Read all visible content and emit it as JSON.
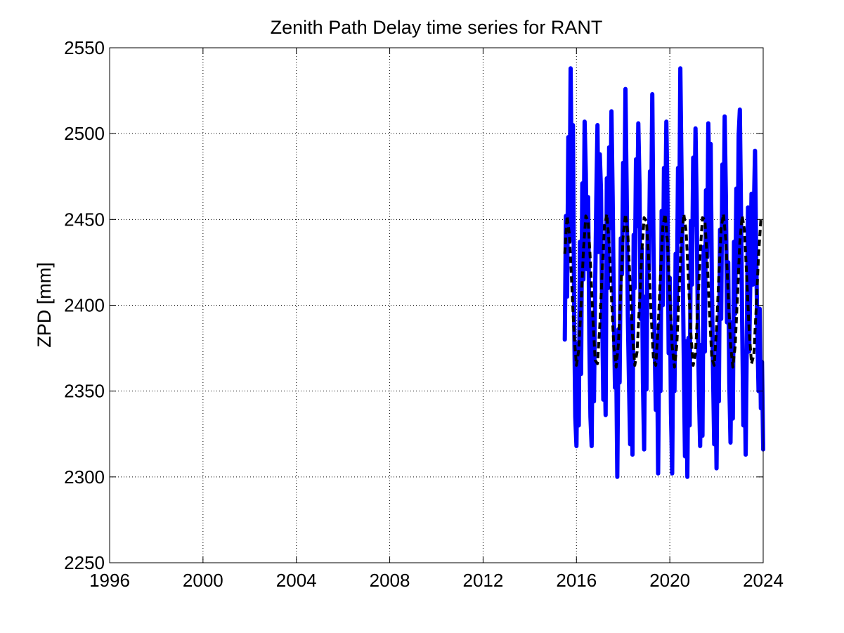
{
  "chart_data": {
    "type": "line",
    "title": "Zenith Path Delay time series for RANT",
    "xlabel": "",
    "ylabel": "ZPD [mm]",
    "xlim": [
      1996,
      2024
    ],
    "ylim": [
      2250,
      2550
    ],
    "xticks": [
      "1996",
      "2000",
      "2004",
      "2008",
      "2012",
      "2016",
      "2020",
      "2024"
    ],
    "yticks": [
      "2250",
      "2300",
      "2350",
      "2400",
      "2450",
      "2500",
      "2550"
    ],
    "grid": true,
    "series": [
      {
        "name": "",
        "style": "solid",
        "color": "#0000ff",
        "x": [
          2015.5,
          2015.55,
          2015.6,
          2015.65,
          2015.7,
          2015.75,
          2015.8,
          2015.85,
          2015.9,
          2015.95,
          2016.0,
          2016.05,
          2016.1,
          2016.15,
          2016.2,
          2016.25,
          2016.3,
          2016.35,
          2016.4,
          2016.45,
          2016.5,
          2016.55,
          2016.6,
          2016.65,
          2016.7,
          2016.75,
          2016.8,
          2016.85,
          2016.9,
          2016.95,
          2017.0,
          2017.05,
          2017.1,
          2017.15,
          2017.2,
          2017.25,
          2017.3,
          2017.35,
          2017.4,
          2017.45,
          2017.5,
          2017.55,
          2017.6,
          2017.65,
          2017.7,
          2017.75,
          2017.8,
          2017.85,
          2017.9,
          2017.95,
          2018.0,
          2018.05,
          2018.1,
          2018.15,
          2018.2,
          2018.25,
          2018.3,
          2018.35,
          2018.4,
          2018.45,
          2018.5,
          2018.55,
          2018.6,
          2018.65,
          2018.7,
          2018.75,
          2018.8,
          2018.85,
          2018.9,
          2018.95,
          2019.0,
          2019.05,
          2019.1,
          2019.15,
          2019.2,
          2019.25,
          2019.3,
          2019.35,
          2019.4,
          2019.45,
          2019.5,
          2019.55,
          2019.6,
          2019.65,
          2019.7,
          2019.75,
          2019.8,
          2019.85,
          2019.9,
          2019.95,
          2020.0,
          2020.05,
          2020.1,
          2020.15,
          2020.2,
          2020.25,
          2020.3,
          2020.35,
          2020.4,
          2020.45,
          2020.5,
          2020.55,
          2020.6,
          2020.65,
          2020.7,
          2020.75,
          2020.8,
          2020.85,
          2020.9,
          2020.95,
          2021.0,
          2021.05,
          2021.1,
          2021.15,
          2021.2,
          2021.25,
          2021.3,
          2021.35,
          2021.4,
          2021.45,
          2021.5,
          2021.55,
          2021.6,
          2021.65,
          2021.7,
          2021.75,
          2021.8,
          2021.85,
          2021.9,
          2021.95,
          2022.0,
          2022.05,
          2022.1,
          2022.15,
          2022.2,
          2022.25,
          2022.3,
          2022.35,
          2022.4,
          2022.45,
          2022.5,
          2022.55,
          2022.6,
          2022.65,
          2022.7,
          2022.75,
          2022.8,
          2022.85,
          2022.9,
          2022.95,
          2023.0,
          2023.05,
          2023.1,
          2023.15,
          2023.2,
          2023.25,
          2023.3,
          2023.35,
          2023.4,
          2023.45,
          2023.5,
          2023.55,
          2023.6,
          2023.65,
          2023.7,
          2023.75,
          2023.8,
          2023.85,
          2023.9,
          2023.95,
          2024.0
        ],
        "y": [
          2380,
          2452,
          2405,
          2498,
          2437,
          2538,
          2470,
          2505,
          2395,
          2335,
          2318,
          2378,
          2330,
          2437,
          2360,
          2471,
          2415,
          2507,
          2477,
          2421,
          2463,
          2380,
          2335,
          2318,
          2395,
          2344,
          2411,
          2461,
          2505,
          2431,
          2488,
          2467,
          2399,
          2345,
          2376,
          2336,
          2474,
          2410,
          2492,
          2445,
          2513,
          2463,
          2401,
          2352,
          2372,
          2300,
          2386,
          2355,
          2439,
          2418,
          2483,
          2452,
          2526,
          2468,
          2394,
          2356,
          2319,
          2392,
          2313,
          2441,
          2410,
          2485,
          2446,
          2506,
          2470,
          2392,
          2433,
          2355,
          2316,
          2405,
          2351,
          2445,
          2420,
          2478,
          2453,
          2523,
          2436,
          2377,
          2339,
          2381,
          2302,
          2389,
          2350,
          2455,
          2400,
          2480,
          2445,
          2507,
          2463,
          2372,
          2416,
          2337,
          2302,
          2387,
          2350,
          2430,
          2398,
          2480,
          2437,
          2538,
          2478,
          2425,
          2365,
          2312,
          2379,
          2300,
          2381,
          2330,
          2449,
          2412,
          2486,
          2447,
          2503,
          2460,
          2389,
          2347,
          2318,
          2377,
          2324,
          2434,
          2373,
          2467,
          2428,
          2506,
          2470,
          2494,
          2416,
          2362,
          2319,
          2366,
          2305,
          2385,
          2344,
          2444,
          2392,
          2482,
          2437,
          2510,
          2464,
          2390,
          2425,
          2355,
          2320,
          2390,
          2334,
          2437,
          2395,
          2468,
          2421,
          2499,
          2514,
          2456,
          2390,
          2330,
          2368,
          2313,
          2380,
          2457,
          2373,
          2415,
          2465,
          2412,
          2455,
          2490,
          2430,
          2385,
          2350,
          2398,
          2340,
          2367,
          2316
        ]
      },
      {
        "name": "",
        "style": "dashed",
        "color": "#000000",
        "x": [
          2015.5,
          2015.6,
          2015.7,
          2015.8,
          2015.9,
          2016.0,
          2016.1,
          2016.2,
          2016.3,
          2016.4,
          2016.5,
          2016.6,
          2016.7,
          2016.8,
          2016.9,
          2017.0,
          2017.1,
          2017.2,
          2017.3,
          2017.4,
          2017.5,
          2017.6,
          2017.7,
          2017.8,
          2017.9,
          2018.0,
          2018.1,
          2018.2,
          2018.3,
          2018.4,
          2018.5,
          2018.6,
          2018.7,
          2018.8,
          2018.9,
          2019.0,
          2019.1,
          2019.2,
          2019.3,
          2019.4,
          2019.5,
          2019.6,
          2019.7,
          2019.8,
          2019.9,
          2020.0,
          2020.1,
          2020.2,
          2020.3,
          2020.4,
          2020.5,
          2020.6,
          2020.7,
          2020.8,
          2020.9,
          2021.0,
          2021.1,
          2021.2,
          2021.3,
          2021.4,
          2021.5,
          2021.6,
          2021.7,
          2021.8,
          2021.9,
          2022.0,
          2022.1,
          2022.2,
          2022.3,
          2022.4,
          2022.5,
          2022.6,
          2022.7,
          2022.8,
          2022.9,
          2023.0,
          2023.1,
          2023.2,
          2023.3,
          2023.4,
          2023.5,
          2023.6,
          2023.7,
          2023.8,
          2023.9,
          2024.0
        ],
        "y": [
          2430,
          2452,
          2441,
          2412,
          2382,
          2365,
          2374,
          2401,
          2432,
          2452,
          2449,
          2425,
          2394,
          2368,
          2366,
          2388,
          2419,
          2446,
          2453,
          2436,
          2405,
          2376,
          2364,
          2378,
          2409,
          2440,
          2453,
          2442,
          2412,
          2383,
          2365,
          2373,
          2401,
          2431,
          2451,
          2449,
          2426,
          2394,
          2368,
          2365,
          2387,
          2418,
          2446,
          2453,
          2437,
          2406,
          2376,
          2364,
          2377,
          2408,
          2438,
          2453,
          2443,
          2414,
          2384,
          2365,
          2372,
          2399,
          2430,
          2451,
          2450,
          2427,
          2396,
          2369,
          2365,
          2386,
          2417,
          2445,
          2453,
          2438,
          2407,
          2377,
          2364,
          2376,
          2406,
          2437,
          2452,
          2444,
          2415,
          2385,
          2366,
          2371,
          2398,
          2429,
          2450,
          2451
        ]
      }
    ]
  }
}
